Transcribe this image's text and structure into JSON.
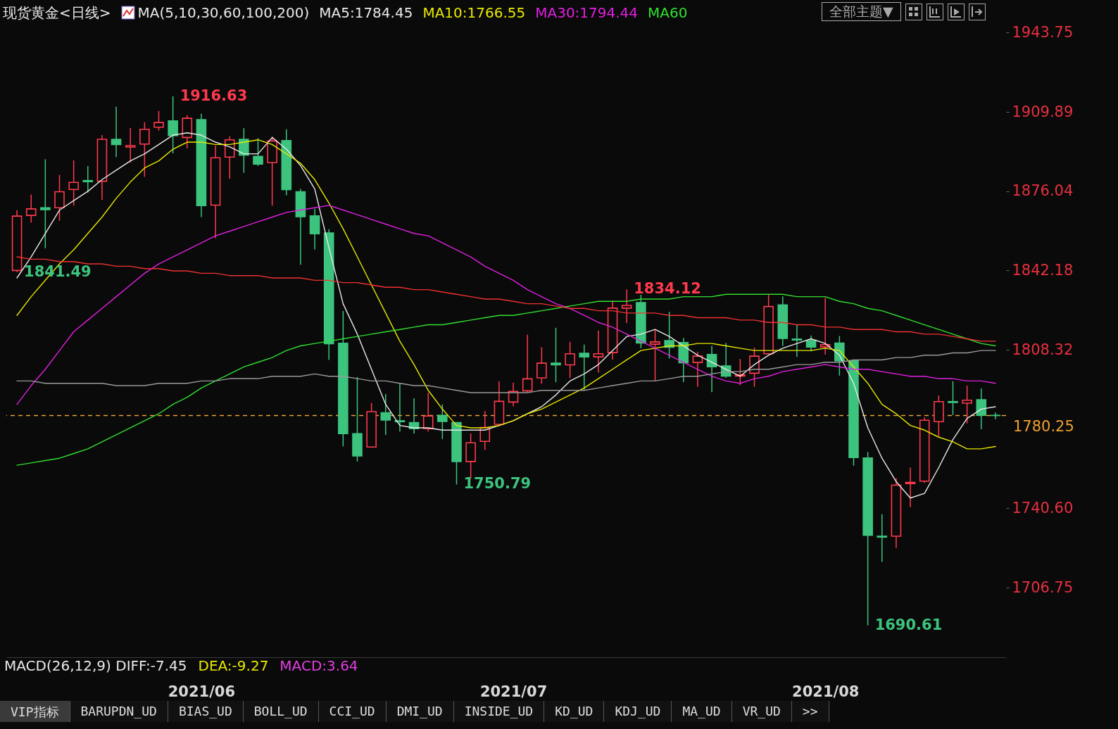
{
  "chart_data": {
    "type": "candlestick",
    "title": "现货黄金<日线>",
    "subtitle": "MA(5,10,30,60,100,200)",
    "legend": "top",
    "grid": false,
    "categories": [
      null,
      null,
      null,
      null,
      null,
      null,
      null,
      null,
      null,
      null,
      null,
      null,
      null,
      "2021/06",
      null,
      null,
      null,
      null,
      null,
      null,
      null,
      null,
      null,
      null,
      null,
      null,
      null,
      null,
      null,
      null,
      null,
      null,
      null,
      null,
      null,
      "2021/07",
      null,
      null,
      null,
      null,
      null,
      null,
      null,
      null,
      null,
      null,
      null,
      null,
      null,
      null,
      null,
      null,
      null,
      null,
      null,
      null,
      null,
      "2021/08",
      null,
      null,
      null,
      null,
      null,
      null,
      null,
      null,
      null,
      null,
      null,
      null
    ],
    "ohlc": [
      [
        1842.2,
        1867.9,
        1841.49,
        1865.4
      ],
      [
        1865.7,
        1874.6,
        1862.7,
        1868.5
      ],
      [
        1869.0,
        1889.7,
        1851.7,
        1868.2
      ],
      [
        1869.0,
        1883.0,
        1863.4,
        1875.8
      ],
      [
        1876.8,
        1889.2,
        1869.9,
        1879.8
      ],
      [
        1880.6,
        1886.8,
        1875.5,
        1880.1
      ],
      [
        1880.3,
        1900.0,
        1872.4,
        1898.2
      ],
      [
        1898.2,
        1912.2,
        1890.6,
        1896.0
      ],
      [
        1894.9,
        1903.0,
        1888.2,
        1895.5
      ],
      [
        1896.2,
        1905.5,
        1882.2,
        1902.5
      ],
      [
        1903.4,
        1910.3,
        1902.0,
        1905.4
      ],
      [
        1906.1,
        1916.63,
        1892.2,
        1899.8
      ],
      [
        1899.0,
        1908.5,
        1894.4,
        1907.2
      ],
      [
        1906.6,
        1909.2,
        1865.0,
        1869.9
      ],
      [
        1870.1,
        1895.5,
        1856.0,
        1890.3
      ],
      [
        1890.6,
        1899.5,
        1881.4,
        1898.0
      ],
      [
        1898.2,
        1903.0,
        1883.9,
        1891.5
      ],
      [
        1890.9,
        1898.7,
        1886.8,
        1887.6
      ],
      [
        1888.3,
        1899.4,
        1869.9,
        1897.5
      ],
      [
        1897.7,
        1902.5,
        1874.3,
        1876.7
      ],
      [
        1875.8,
        1877.0,
        1844.6,
        1865.2
      ],
      [
        1865.5,
        1868.5,
        1851.2,
        1857.9
      ],
      [
        1858.2,
        1859.8,
        1804.0,
        1810.9
      ],
      [
        1811.1,
        1824.9,
        1767.1,
        1772.5
      ],
      [
        1772.5,
        1796.7,
        1760.6,
        1763.0
      ],
      [
        1766.8,
        1785.6,
        1766.5,
        1781.9
      ],
      [
        1781.4,
        1789.4,
        1772.0,
        1778.3
      ],
      [
        1778.0,
        1794.1,
        1773.4,
        1777.6
      ],
      [
        1777.2,
        1787.6,
        1772.5,
        1774.6
      ],
      [
        1774.6,
        1789.9,
        1773.4,
        1780.0
      ],
      [
        1780.3,
        1785.0,
        1770.2,
        1777.7
      ],
      [
        1777.2,
        1777.2,
        1750.79,
        1760.6
      ],
      [
        1760.6,
        1772.5,
        1753.3,
        1768.6
      ],
      [
        1769.2,
        1782.1,
        1765.5,
        1775.1
      ],
      [
        1776.5,
        1794.9,
        1775.8,
        1786.3
      ],
      [
        1786.0,
        1794.2,
        1784.2,
        1790.5
      ],
      [
        1790.8,
        1814.7,
        1790.2,
        1795.9
      ],
      [
        1796.3,
        1809.4,
        1793.8,
        1802.6
      ],
      [
        1802.6,
        1817.7,
        1794.5,
        1801.9
      ],
      [
        1801.9,
        1811.7,
        1796.3,
        1806.6
      ],
      [
        1806.8,
        1810.5,
        1791.3,
        1805.3
      ],
      [
        1805.3,
        1816.5,
        1798.6,
        1806.6
      ],
      [
        1807.1,
        1829.3,
        1804.1,
        1826.1
      ],
      [
        1826.1,
        1834.12,
        1819.8,
        1827.3
      ],
      [
        1828.5,
        1831.8,
        1809.0,
        1811.2
      ],
      [
        1810.7,
        1816.7,
        1795.0,
        1811.7
      ],
      [
        1812.2,
        1824.5,
        1804.6,
        1809.4
      ],
      [
        1811.4,
        1813.4,
        1794.5,
        1802.8
      ],
      [
        1802.9,
        1807.4,
        1792.5,
        1805.6
      ],
      [
        1806.3,
        1810.0,
        1790.2,
        1801.1
      ],
      [
        1801.4,
        1811.2,
        1796.4,
        1797.1
      ],
      [
        1797.1,
        1804.4,
        1793.2,
        1797.6
      ],
      [
        1798.3,
        1809.2,
        1792.5,
        1805.6
      ],
      [
        1806.6,
        1831.8,
        1806.3,
        1826.8
      ],
      [
        1827.5,
        1831.1,
        1810.0,
        1813.2
      ],
      [
        1812.9,
        1819.0,
        1805.3,
        1812.5
      ],
      [
        1812.2,
        1814.4,
        1807.7,
        1809.5
      ],
      [
        1809.5,
        1830.5,
        1806.3,
        1810.5
      ],
      [
        1811.2,
        1814.2,
        1797.3,
        1803.6
      ],
      [
        1803.6,
        1804.1,
        1758.8,
        1762.3
      ],
      [
        1762.1,
        1764.6,
        1690.61,
        1729.1
      ],
      [
        1728.7,
        1738.1,
        1717.7,
        1728.3
      ],
      [
        1728.7,
        1753.5,
        1723.7,
        1750.5
      ],
      [
        1751.2,
        1758.0,
        1741.1,
        1751.7
      ],
      [
        1752.2,
        1779.4,
        1751.5,
        1778.2
      ],
      [
        1777.6,
        1788.8,
        1771.4,
        1786.2
      ],
      [
        1786.2,
        1794.9,
        1780.4,
        1785.8
      ],
      [
        1785.5,
        1793.0,
        1776.9,
        1786.8
      ],
      [
        1787.0,
        1791.8,
        1774.4,
        1780.3
      ],
      [
        1780.3,
        1781.5,
        1778.7,
        1780.25
      ]
    ],
    "series": [
      {
        "name": "MA5:1784.45",
        "type": "line",
        "color": "#e8e8e8",
        "values": [
          1839,
          1848,
          1858,
          1868,
          1872,
          1876,
          1881,
          1885,
          1889,
          1892,
          1896,
          1900,
          1901,
          1900,
          1897,
          1895,
          1892,
          1892,
          1899,
          1894,
          1887,
          1877,
          1852,
          1828,
          1815,
          1800,
          1785,
          1776,
          1775,
          1775,
          1774,
          1774,
          1774,
          1774,
          1776,
          1778,
          1781,
          1784,
          1789,
          1795,
          1798,
          1802,
          1808,
          1814,
          1815,
          1817,
          1814,
          1810,
          1806,
          1803,
          1800,
          1797,
          1802,
          1806,
          1809,
          1811,
          1813,
          1811,
          1806,
          1794,
          1775,
          1762,
          1752,
          1745,
          1747,
          1758,
          1770,
          1779,
          1783,
          1784
        ]
      },
      {
        "name": "MA10:1766.55",
        "type": "line",
        "color": "#e8e800",
        "values": [
          1823,
          1831,
          1838,
          1845,
          1851,
          1858,
          1865,
          1873,
          1880,
          1886,
          1889,
          1894,
          1897,
          1897,
          1896,
          1896,
          1897,
          1898,
          1896,
          1892,
          1888,
          1881,
          1871,
          1860,
          1848,
          1836,
          1824,
          1812,
          1802,
          1791,
          1783,
          1776,
          1775,
          1775,
          1776,
          1778,
          1781,
          1783,
          1786,
          1789,
          1792,
          1796,
          1800,
          1804,
          1808,
          1809,
          1810,
          1810,
          1811,
          1811,
          1810,
          1809,
          1808,
          1808,
          1808,
          1808,
          1808,
          1809,
          1808,
          1801,
          1794,
          1785,
          1781,
          1776,
          1774,
          1771,
          1769,
          1766,
          1766,
          1767
        ]
      },
      {
        "name": "MA30:1794.44",
        "type": "line",
        "color": "#e020e0",
        "values": [
          1785,
          1793,
          1800,
          1808,
          1816,
          1821,
          1826,
          1831,
          1836,
          1841,
          1845,
          1848,
          1851,
          1854,
          1857,
          1859,
          1861,
          1863,
          1865,
          1867,
          1868,
          1869,
          1870,
          1868,
          1866,
          1864,
          1862,
          1860,
          1858,
          1857,
          1854,
          1851,
          1848,
          1844,
          1841,
          1838,
          1834,
          1831,
          1828,
          1826,
          1823,
          1820,
          1818,
          1815,
          1812,
          1809,
          1806,
          1803,
          1800,
          1797,
          1795,
          1794,
          1796,
          1797,
          1799,
          1800,
          1801,
          1802,
          1801,
          1800,
          1800,
          1799,
          1798,
          1797,
          1797,
          1796,
          1796,
          1795,
          1795,
          1794
        ]
      },
      {
        "name": "MA60",
        "type": "line",
        "color": "#30e030",
        "values": [
          1759,
          1760,
          1761,
          1762,
          1764,
          1766,
          1769,
          1772,
          1775,
          1778,
          1781,
          1785,
          1788,
          1792,
          1795,
          1798,
          1801,
          1803,
          1805,
          1808,
          1810,
          1811,
          1812,
          1813,
          1814,
          1815,
          1816,
          1817,
          1818,
          1819,
          1819,
          1820,
          1821,
          1822,
          1823,
          1823,
          1824,
          1825,
          1826,
          1827,
          1828,
          1829,
          1829,
          1829,
          1830,
          1830,
          1830,
          1831,
          1831,
          1831,
          1832,
          1832,
          1832,
          1832,
          1832,
          1831,
          1831,
          1831,
          1829,
          1828,
          1826,
          1825,
          1823,
          1821,
          1819,
          1817,
          1815,
          1813,
          1811,
          1810
        ]
      },
      {
        "type": "line",
        "color": "#9a9a9a",
        "values": [
          1795,
          1795,
          1794,
          1794,
          1794,
          1794,
          1794,
          1793,
          1793,
          1793,
          1794,
          1794,
          1794,
          1795,
          1795,
          1796,
          1796,
          1796,
          1797,
          1797,
          1797,
          1798,
          1797,
          1797,
          1796,
          1795,
          1795,
          1794,
          1793,
          1793,
          1792,
          1791,
          1790,
          1790,
          1790,
          1790,
          1790,
          1791,
          1791,
          1791,
          1791,
          1792,
          1793,
          1794,
          1795,
          1795,
          1796,
          1797,
          1797,
          1798,
          1799,
          1799,
          1800,
          1800,
          1801,
          1802,
          1802,
          1803,
          1803,
          1804,
          1804,
          1804,
          1805,
          1805,
          1806,
          1806,
          1807,
          1807,
          1808,
          1808
        ]
      },
      {
        "type": "line",
        "color": "#f03030",
        "values": [
          1848,
          1847,
          1847,
          1846,
          1846,
          1845,
          1845,
          1844,
          1844,
          1843,
          1843,
          1842,
          1842,
          1841,
          1841,
          1840,
          1840,
          1840,
          1839,
          1839,
          1839,
          1838,
          1838,
          1837,
          1837,
          1836,
          1835,
          1835,
          1834,
          1834,
          1833,
          1832,
          1831,
          1830,
          1830,
          1829,
          1828,
          1828,
          1827,
          1826,
          1826,
          1825,
          1825,
          1824,
          1824,
          1824,
          1823,
          1823,
          1822,
          1822,
          1822,
          1821,
          1821,
          1820,
          1820,
          1819,
          1819,
          1818,
          1818,
          1817,
          1817,
          1817,
          1816,
          1816,
          1815,
          1815,
          1814,
          1813,
          1812,
          1812
        ]
      }
    ],
    "ylim": [
      1677,
      1946
    ],
    "yticks": [
      1943.75,
      1909.89,
      1876.04,
      1842.18,
      1808.32,
      {
        "value": 1740.6,
        "label": "1740.60"
      },
      1706.75
    ],
    "ref_lines": [
      {
        "axis": "y",
        "value": 1780.25,
        "label": "1780.25",
        "color": "#f0a030",
        "line_style": "dashed"
      }
    ],
    "annotations": [
      "1916.63",
      "1841.49",
      "1834.12",
      "1750.79",
      "1690.61",
      "全部主题▼",
      "MACD(26,12,9) DIFF:-7.45",
      "DEA:-9.27",
      "MACD:3.64",
      "VIP指标",
      "BARUPDN_UD",
      "BIAS_UD",
      "BOLL_UD",
      "CCI_UD",
      "DMI_UD",
      "INSIDE_UD",
      "KD_UD",
      "KDJ_UD",
      "MA_UD",
      "VR_UD",
      ">>"
    ]
  }
}
